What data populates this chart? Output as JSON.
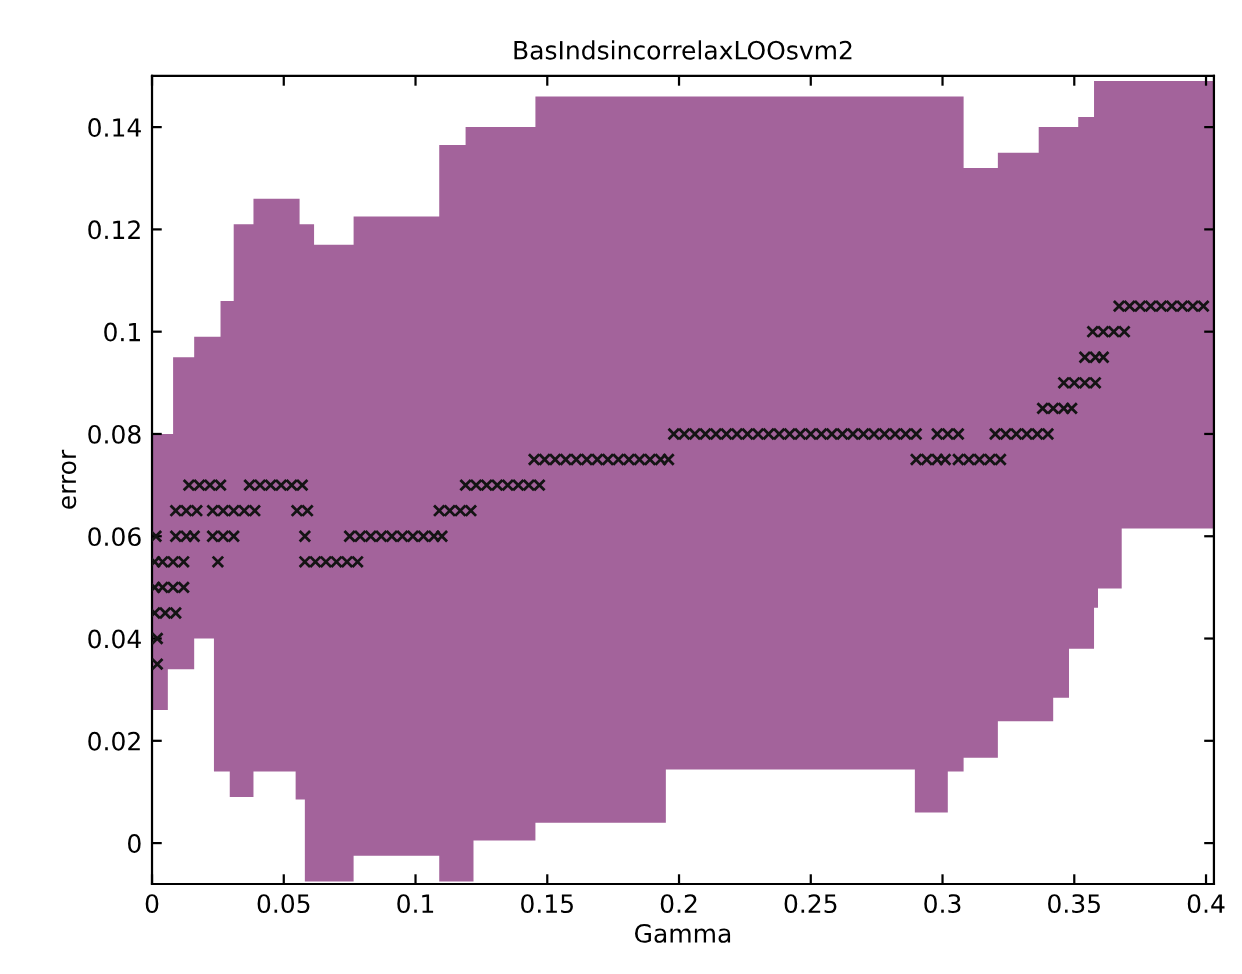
{
  "chart_data": {
    "type": "scatter",
    "title": "BasIndsincorrelaxLOOsvm2",
    "xlabel": "Gamma",
    "ylabel": "error",
    "xlim": [
      0,
      0.403
    ],
    "ylim": [
      -0.008,
      0.15
    ],
    "xticks": [
      0,
      0.05,
      0.1,
      0.15,
      0.2,
      0.25,
      0.3,
      0.35,
      0.4
    ],
    "yticks": [
      0,
      0.02,
      0.04,
      0.06,
      0.08,
      0.1,
      0.12,
      0.14
    ],
    "grid": false,
    "series": [
      {
        "type": "line",
        "color": "#a3639b",
        "x": [
          0,
          0.006,
          0.006,
          0.008,
          0.008,
          0.016,
          0.016,
          0.0235,
          0.0235,
          0.026,
          0.026,
          0.0295,
          0.0295,
          0.031,
          0.031,
          0.0385,
          0.0385,
          0.0545,
          0.0545,
          0.056,
          0.056,
          0.058,
          0.058,
          0.0615,
          0.0615,
          0.0765,
          0.0765,
          0.109,
          0.109,
          0.119,
          0.119,
          0.122,
          0.122,
          0.1455,
          0.1455,
          0.195,
          0.195,
          0.2895,
          0.2895,
          0.302,
          0.302,
          0.308,
          0.308,
          0.321,
          0.321,
          0.3365,
          0.3365,
          0.342,
          0.342,
          0.348,
          0.348,
          0.3515,
          0.3515,
          0.3575,
          0.3575,
          0.359,
          0.359,
          0.368,
          0.368,
          0.403
        ],
        "values": [
          null,
          null,
          null,
          null,
          null,
          null,
          null,
          null,
          null,
          null,
          null,
          null,
          null,
          null,
          null,
          null,
          null,
          null,
          null,
          null,
          null,
          null,
          null,
          null,
          null,
          null,
          null,
          null,
          null,
          null,
          null,
          null,
          null,
          null,
          null,
          null,
          null,
          null,
          null,
          null,
          null,
          null,
          null,
          null,
          null,
          null,
          null,
          null,
          null,
          null,
          null,
          null,
          null,
          null,
          null,
          null,
          null,
          null,
          null,
          null
        ],
        "upper": [
          0.08,
          0.08,
          0.08,
          0.08,
          0.095,
          0.095,
          0.099,
          0.099,
          0.099,
          0.099,
          0.106,
          0.106,
          0.106,
          0.106,
          0.121,
          0.121,
          0.126,
          0.126,
          0.126,
          0.126,
          0.121,
          0.121,
          0.121,
          0.121,
          0.117,
          0.117,
          0.1225,
          0.1225,
          0.1365,
          0.1365,
          0.14,
          0.14,
          0.14,
          0.14,
          0.146,
          0.146,
          0.146,
          0.146,
          0.146,
          0.146,
          0.146,
          0.146,
          0.132,
          0.132,
          0.135,
          0.135,
          0.14,
          0.14,
          0.14,
          0.14,
          0.14,
          0.14,
          0.142,
          0.142,
          0.149,
          0.149,
          0.149,
          0.149,
          0.149,
          0.149
        ],
        "lower": [
          0.026,
          0.026,
          0.034,
          0.034,
          0.034,
          0.034,
          0.04,
          0.04,
          0.014,
          0.014,
          0.014,
          0.014,
          0.009,
          0.009,
          0.009,
          0.009,
          0.014,
          0.014,
          0.0085,
          0.0085,
          0.0085,
          0.0085,
          -0.0075,
          -0.0075,
          -0.0075,
          -0.0075,
          -0.0025,
          -0.0025,
          -0.0075,
          -0.0075,
          -0.0075,
          -0.0075,
          0.0005,
          0.0005,
          0.004,
          0.004,
          0.0144,
          0.0144,
          0.006,
          0.006,
          0.014,
          0.014,
          0.0167,
          0.0167,
          0.0238,
          0.0238,
          0.0238,
          0.0238,
          0.0284,
          0.0284,
          0.038,
          0.038,
          0.038,
          0.038,
          0.046,
          0.046,
          0.0498,
          0.0498,
          0.0615,
          0.0615
        ]
      },
      {
        "color": "#141414",
        "marker": "cross",
        "x": [
          0.014,
          0.018,
          0.022,
          0.026,
          0.037,
          0.041,
          0.045,
          0.049,
          0.053,
          0.057,
          0.119,
          0.123,
          0.127,
          0.131,
          0.135,
          0.139,
          0.143,
          0.147,
          0.009,
          0.013,
          0.017,
          0.023,
          0.027,
          0.031,
          0.035,
          0.039,
          0.055,
          0.059,
          0.109,
          0.113,
          0.117,
          0.121,
          0.0015,
          0.009,
          0.013,
          0.016,
          0.023,
          0.027,
          0.031,
          0.058,
          0.075,
          0.079,
          0.083,
          0.087,
          0.091,
          0.095,
          0.099,
          0.103,
          0.107,
          0.11,
          0.001,
          0.004,
          0.008,
          0.012,
          0.025,
          0.058,
          0.062,
          0.066,
          0.07,
          0.074,
          0.078,
          0.001,
          0.004,
          0.008,
          0.012,
          0.001,
          0.005,
          0.009,
          0.002,
          0.002,
          0.145,
          0.149,
          0.153,
          0.157,
          0.161,
          0.165,
          0.169,
          0.173,
          0.177,
          0.181,
          0.185,
          0.189,
          0.193,
          0.196,
          0.198,
          0.202,
          0.206,
          0.21,
          0.214,
          0.218,
          0.222,
          0.226,
          0.23,
          0.234,
          0.238,
          0.242,
          0.246,
          0.25,
          0.254,
          0.258,
          0.262,
          0.266,
          0.27,
          0.274,
          0.278,
          0.282,
          0.286,
          0.29,
          0.29,
          0.294,
          0.298,
          0.301,
          0.306,
          0.31,
          0.314,
          0.318,
          0.322,
          0.298,
          0.302,
          0.306,
          0.32,
          0.324,
          0.328,
          0.332,
          0.336,
          0.34,
          0.338,
          0.342,
          0.346,
          0.349,
          0.346,
          0.35,
          0.354,
          0.358,
          0.354,
          0.358,
          0.361,
          0.357,
          0.361,
          0.365,
          0.369,
          0.367,
          0.371,
          0.375,
          0.379,
          0.383,
          0.387,
          0.391,
          0.395,
          0.399
        ],
        "values": [
          0.07,
          0.07,
          0.07,
          0.07,
          0.07,
          0.07,
          0.07,
          0.07,
          0.07,
          0.07,
          0.07,
          0.07,
          0.07,
          0.07,
          0.07,
          0.07,
          0.07,
          0.07,
          0.065,
          0.065,
          0.065,
          0.065,
          0.065,
          0.065,
          0.065,
          0.065,
          0.065,
          0.065,
          0.065,
          0.065,
          0.065,
          0.065,
          0.06,
          0.06,
          0.06,
          0.06,
          0.06,
          0.06,
          0.06,
          0.06,
          0.06,
          0.06,
          0.06,
          0.06,
          0.06,
          0.06,
          0.06,
          0.06,
          0.06,
          0.06,
          0.055,
          0.055,
          0.055,
          0.055,
          0.055,
          0.055,
          0.055,
          0.055,
          0.055,
          0.055,
          0.055,
          0.05,
          0.05,
          0.05,
          0.05,
          0.045,
          0.045,
          0.045,
          0.04,
          0.035,
          0.075,
          0.075,
          0.075,
          0.075,
          0.075,
          0.075,
          0.075,
          0.075,
          0.075,
          0.075,
          0.075,
          0.075,
          0.075,
          0.075,
          0.08,
          0.08,
          0.08,
          0.08,
          0.08,
          0.08,
          0.08,
          0.08,
          0.08,
          0.08,
          0.08,
          0.08,
          0.08,
          0.08,
          0.08,
          0.08,
          0.08,
          0.08,
          0.08,
          0.08,
          0.08,
          0.08,
          0.08,
          0.08,
          0.075,
          0.075,
          0.075,
          0.075,
          0.075,
          0.075,
          0.075,
          0.075,
          0.075,
          0.08,
          0.08,
          0.08,
          0.08,
          0.08,
          0.08,
          0.08,
          0.08,
          0.08,
          0.085,
          0.085,
          0.085,
          0.085,
          0.09,
          0.09,
          0.09,
          0.09,
          0.095,
          0.095,
          0.095,
          0.1,
          0.1,
          0.1,
          0.1,
          0.105,
          0.105,
          0.105,
          0.105,
          0.105,
          0.105,
          0.105,
          0.105,
          0.105
        ]
      }
    ]
  }
}
